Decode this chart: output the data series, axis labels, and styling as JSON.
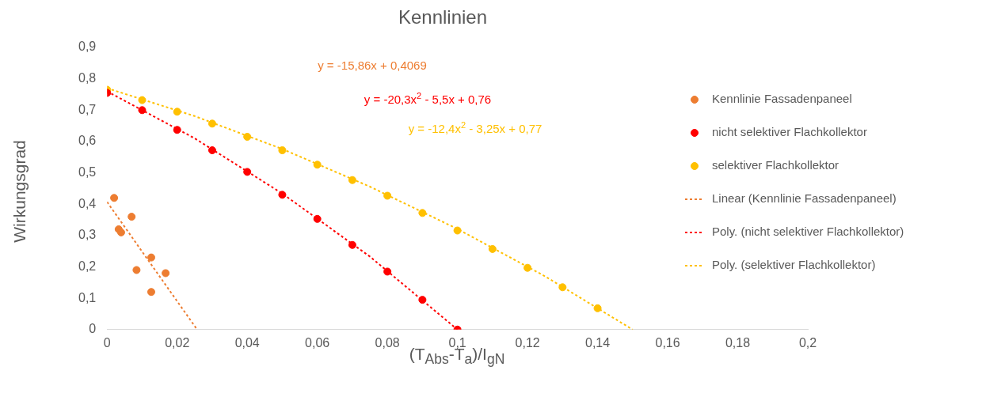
{
  "chart_data": {
    "type": "scatter",
    "title": "Kennlinien",
    "xlabel": "(T$_{Abs}$-T$_{a}$)/I$_{gN}$",
    "ylabel": "Wirkungsgrad",
    "xlim": [
      0,
      0.2
    ],
    "xticks": [
      0,
      {
        "value": 0.02,
        "label": "0,02"
      },
      {
        "value": 0.04,
        "label": "0,04"
      },
      {
        "value": 0.06,
        "label": "0,06"
      },
      {
        "value": 0.08,
        "label": "0,08"
      },
      {
        "value": 0.1,
        "label": "0,1"
      },
      {
        "value": 0.12,
        "label": "0,12"
      },
      {
        "value": 0.14,
        "label": "0,14"
      },
      {
        "value": 0.16,
        "label": "0,16"
      },
      {
        "value": 0.18,
        "label": "0,18"
      },
      {
        "value": 0.2,
        "label": "0,2"
      }
    ],
    "ylim": [
      0,
      0.9
    ],
    "yticks": [
      0,
      {
        "value": 0.1,
        "label": "0,1"
      },
      {
        "value": 0.2,
        "label": "0,2"
      },
      {
        "value": 0.3,
        "label": "0,3"
      },
      {
        "value": 0.4,
        "label": "0,4"
      },
      {
        "value": 0.5,
        "label": "0,5"
      },
      {
        "value": 0.6,
        "label": "0,6"
      },
      {
        "value": 0.7,
        "label": "0,7"
      },
      {
        "value": 0.8,
        "label": "0,8"
      },
      {
        "value": 0.9,
        "label": "0,9"
      }
    ],
    "grid": false,
    "legend": "right",
    "marker": "circle",
    "series": [
      {
        "name": "Kennlinie Fassadenpaneel",
        "color": "#ed7d31",
        "x": [
          0.002,
          0.0033,
          0.004,
          0.007,
          0.0084,
          0.0126,
          0.0126,
          0.0167
        ],
        "values": [
          0.42,
          0.32,
          0.31,
          0.36,
          0.19,
          0.23,
          0.12,
          0.18
        ]
      },
      {
        "name": "nicht selektiver Flachkollektor",
        "color": "#ff0000",
        "x": [
          0,
          0.01,
          0.02,
          0.03,
          0.04,
          0.05,
          0.06,
          0.07,
          0.08,
          0.09,
          0.1
        ],
        "values": [
          0.755,
          0.7,
          0.637,
          0.572,
          0.503,
          0.43,
          0.353,
          0.27,
          0.185,
          0.095,
          0
        ]
      },
      {
        "name": "selektiver Flachkollektor",
        "color": "#ffc000",
        "x": [
          0,
          0.01,
          0.02,
          0.03,
          0.04,
          0.05,
          0.06,
          0.07,
          0.08,
          0.09,
          0.1,
          0.11,
          0.12,
          0.13,
          0.14
        ],
        "values": [
          0.765,
          0.732,
          0.695,
          0.657,
          0.615,
          0.572,
          0.526,
          0.477,
          0.427,
          0.372,
          0.316,
          0.257,
          0.197,
          0.135,
          0.068
        ]
      },
      {
        "name": "Linear (Kennlinie Fassadenpaneel)",
        "type": "line",
        "line_style": "dotted",
        "marker": "none",
        "color": "#ed7d31",
        "x": [
          0,
          0.0257
        ],
        "values": [
          0.407,
          0
        ]
      },
      {
        "name": "Poly. (nicht selektiver Flachkollektor)",
        "type": "line",
        "line_style": "dotted",
        "marker": "none",
        "color": "#ff0000",
        "x": [
          0,
          0.025,
          0.05,
          0.075,
          0.1
        ],
        "values": [
          0.76,
          0.61,
          0.434,
          0.233,
          0
        ]
      },
      {
        "name": "Poly. (selektiver Flachkollektor)",
        "type": "line",
        "line_style": "dotted",
        "marker": "none",
        "color": "#ffc000",
        "x": [
          0,
          0.025,
          0.05,
          0.075,
          0.1,
          0.125,
          0.15
        ],
        "values": [
          0.77,
          0.681,
          0.576,
          0.456,
          0.321,
          0.17,
          0
        ]
      }
    ],
    "annotations": [
      "y = -15,86x + 0,4069",
      "y = -20,3x$^{2}$ - 5,5x + 0,76",
      "y = -12,4x$^{2}$ - 3,25x + 0,77"
    ]
  }
}
